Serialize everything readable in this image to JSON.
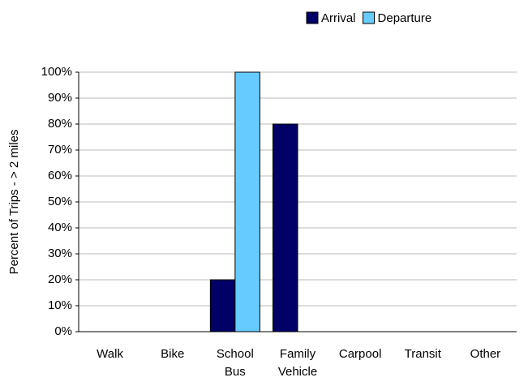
{
  "chart_data": {
    "type": "bar",
    "categories": [
      "Walk",
      "Bike",
      "School Bus",
      "Family Vehicle",
      "Carpool",
      "Transit",
      "Other"
    ],
    "series": [
      {
        "name": "Arrival",
        "color": "#000066",
        "values": [
          0,
          0,
          20,
          80,
          0,
          0,
          0
        ]
      },
      {
        "name": "Departure",
        "color": "#66ccff",
        "values": [
          0,
          0,
          100,
          0,
          0,
          0,
          0
        ]
      }
    ],
    "y_label": "Percent of Trips - > 2 miles",
    "ylim": [
      0,
      100
    ],
    "yticks": [
      {
        "value": 0,
        "label": "0%"
      },
      {
        "value": 10,
        "label": "10%"
      },
      {
        "value": 20,
        "label": "20%"
      },
      {
        "value": 30,
        "label": "30%"
      },
      {
        "value": 40,
        "label": "40%"
      },
      {
        "value": 50,
        "label": "50%"
      },
      {
        "value": 60,
        "label": "60%"
      },
      {
        "value": 70,
        "label": "70%"
      },
      {
        "value": 80,
        "label": "80%"
      },
      {
        "value": 90,
        "label": "90%"
      },
      {
        "value": 100,
        "label": "100%"
      }
    ],
    "grid": true,
    "legend": "top-right"
  }
}
